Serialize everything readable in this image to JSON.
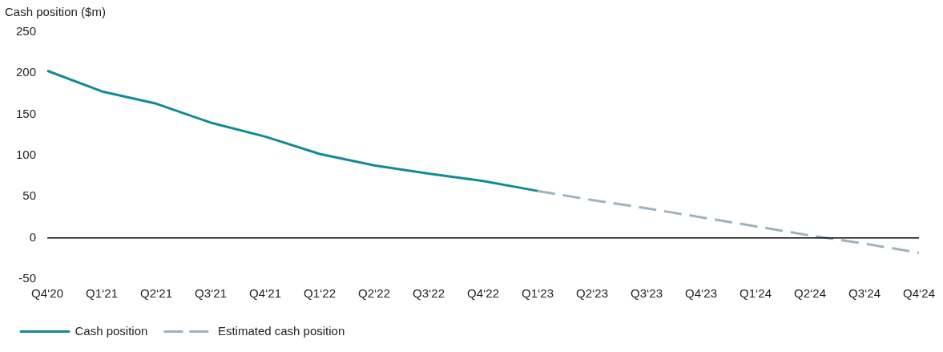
{
  "chart_data": {
    "type": "line",
    "ylabel": "Cash position ($m)",
    "categories": [
      "Q4‘20",
      "Q1‘21",
      "Q2‘21",
      "Q3‘21",
      "Q4‘21",
      "Q1‘22",
      "Q2‘22",
      "Q3‘22",
      "Q4‘22",
      "Q1‘23",
      "Q2‘23",
      "Q3‘23",
      "Q4‘23",
      "Q1‘24",
      "Q2‘24",
      "Q3‘24",
      "Q4‘24"
    ],
    "series": [
      {
        "name": "Cash position",
        "color": "#138a96",
        "line_style": "solid",
        "values": [
          203,
          178,
          163,
          140,
          123,
          102,
          88,
          78,
          69,
          57,
          null,
          null,
          null,
          null,
          null,
          null,
          null
        ]
      },
      {
        "name": "Estimated cash position",
        "color": "#9fb3bf",
        "line_style": "dashed",
        "values": [
          null,
          null,
          null,
          null,
          null,
          null,
          null,
          null,
          null,
          57,
          46,
          36,
          25,
          14,
          3,
          -7,
          -18
        ]
      }
    ],
    "ylim": [
      -50,
      250
    ],
    "yticks": [
      -50,
      0,
      50,
      100,
      150,
      200,
      250
    ],
    "grid": false,
    "legend": "bottom left",
    "marker": "none",
    "ref_lines": [
      {
        "axis": "y",
        "value": 0,
        "color": "#000000"
      }
    ]
  }
}
